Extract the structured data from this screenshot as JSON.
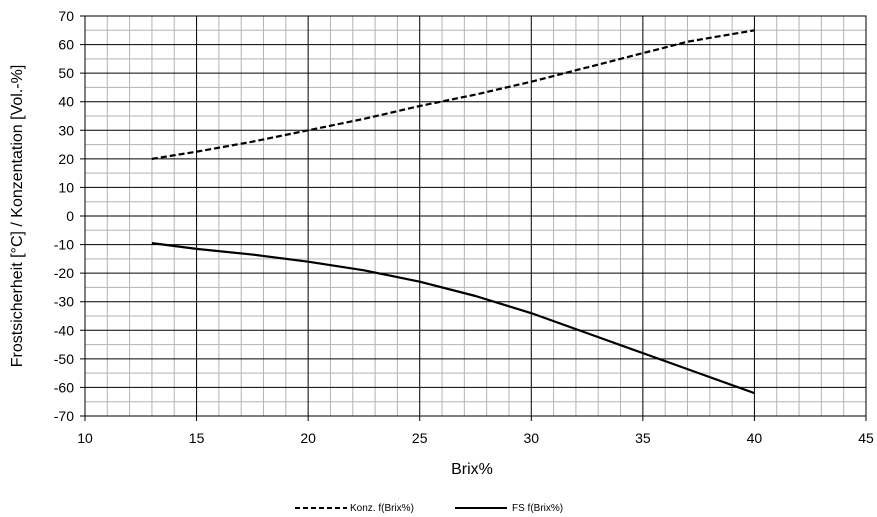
{
  "chart_data": {
    "type": "line",
    "xlabel": "Brix%",
    "ylabel": "Frostsicherheit [°C] / Konzentation [Vol.-%]",
    "xlim": [
      10,
      45
    ],
    "ylim": [
      -70,
      70
    ],
    "x_major_ticks": [
      "10",
      "15",
      "20",
      "25",
      "30",
      "35",
      "40",
      "45"
    ],
    "y_major_ticks": [
      "70",
      "60",
      "50",
      "40",
      "30",
      "20",
      "10",
      "0",
      "-10",
      "-20",
      "-30",
      "-40",
      "-50",
      "-60",
      "-70"
    ],
    "grid": true,
    "legend_position": "bottom-center",
    "series": [
      {
        "name": "Konz. f(Brix%)",
        "style": "dashed",
        "color": "#000000",
        "points": [
          [
            13,
            20
          ],
          [
            15,
            22.5
          ],
          [
            17.5,
            26
          ],
          [
            20,
            30
          ],
          [
            22.5,
            34
          ],
          [
            25,
            38.5
          ],
          [
            27.5,
            42.5
          ],
          [
            30,
            47
          ],
          [
            32.5,
            52
          ],
          [
            35,
            57
          ],
          [
            37,
            61
          ],
          [
            40,
            65
          ]
        ]
      },
      {
        "name": "FS f(Brix%)",
        "style": "solid",
        "color": "#000000",
        "points": [
          [
            13,
            -9.5
          ],
          [
            15,
            -11.5
          ],
          [
            17.5,
            -13.5
          ],
          [
            20,
            -16
          ],
          [
            22.5,
            -19
          ],
          [
            25,
            -23
          ],
          [
            27.5,
            -28
          ],
          [
            30,
            -34
          ],
          [
            32.5,
            -41
          ],
          [
            35,
            -48
          ],
          [
            37.5,
            -55
          ],
          [
            40,
            -62
          ]
        ]
      }
    ]
  }
}
